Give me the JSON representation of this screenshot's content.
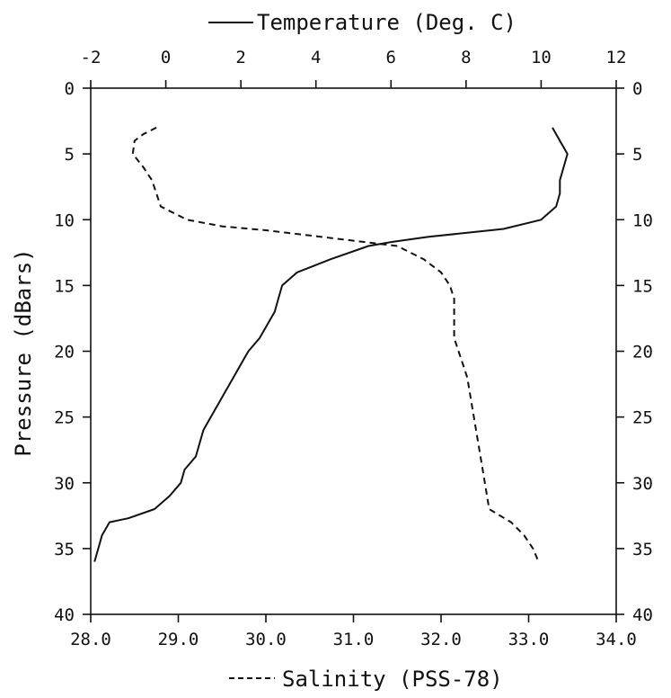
{
  "chart_data": {
    "type": "line",
    "legend": {
      "temperature": "Temperature (Deg. C)",
      "salinity": "Salinity (PSS-78)"
    },
    "ylabel": "Pressure (dBars)",
    "y_axis": {
      "inverted": true,
      "ylim": [
        0,
        40
      ],
      "ticks": [
        "0",
        "5",
        "10",
        "15",
        "20",
        "25",
        "30",
        "35",
        "40"
      ]
    },
    "top_axis": {
      "quantity": "Temperature",
      "xlim": [
        -2,
        12
      ],
      "ticks": [
        "-2",
        "0",
        "2",
        "4",
        "6",
        "8",
        "10",
        "12"
      ]
    },
    "bottom_axis": {
      "quantity": "Salinity",
      "xlim": [
        28.0,
        34.0
      ],
      "ticks": [
        "28.0",
        "29.0",
        "30.0",
        "31.0",
        "32.0",
        "33.0",
        "34.0"
      ]
    },
    "grid": false,
    "series": [
      {
        "name": "Temperature (Deg. C)",
        "axis": "top",
        "line_style": "solid",
        "points": [
          [
            10.3,
            3
          ],
          [
            10.5,
            4
          ],
          [
            10.7,
            5
          ],
          [
            10.6,
            6
          ],
          [
            10.5,
            7
          ],
          [
            10.5,
            8
          ],
          [
            10.4,
            9
          ],
          [
            10.0,
            10
          ],
          [
            9.0,
            10.7
          ],
          [
            8.0,
            11.0
          ],
          [
            7.0,
            11.3
          ],
          [
            6.0,
            11.7
          ],
          [
            5.4,
            12.0
          ],
          [
            4.4,
            13.0
          ],
          [
            3.5,
            14.0
          ],
          [
            3.1,
            15.0
          ],
          [
            3.0,
            16.0
          ],
          [
            2.9,
            17.0
          ],
          [
            2.7,
            18.0
          ],
          [
            2.5,
            19.0
          ],
          [
            2.2,
            20.0
          ],
          [
            2.0,
            21.0
          ],
          [
            1.8,
            22.0
          ],
          [
            1.6,
            23.0
          ],
          [
            1.4,
            24.0
          ],
          [
            1.2,
            25.0
          ],
          [
            1.0,
            26.0
          ],
          [
            0.9,
            27.0
          ],
          [
            0.8,
            28.0
          ],
          [
            0.5,
            29.0
          ],
          [
            0.4,
            30.0
          ],
          [
            0.1,
            31.0
          ],
          [
            -0.3,
            32.0
          ],
          [
            -1.0,
            32.7
          ],
          [
            -1.5,
            33.0
          ],
          [
            -1.7,
            34.0
          ],
          [
            -1.8,
            35.0
          ],
          [
            -1.9,
            36.0
          ]
        ]
      },
      {
        "name": "Salinity (PSS-78)",
        "axis": "bottom",
        "line_style": "dashed",
        "points": [
          [
            28.75,
            3
          ],
          [
            28.6,
            3.5
          ],
          [
            28.5,
            4
          ],
          [
            28.48,
            5
          ],
          [
            28.6,
            6
          ],
          [
            28.7,
            7
          ],
          [
            28.75,
            8
          ],
          [
            28.8,
            9
          ],
          [
            29.1,
            10
          ],
          [
            29.5,
            10.5
          ],
          [
            30.0,
            10.8
          ],
          [
            30.5,
            11.2
          ],
          [
            31.0,
            11.6
          ],
          [
            31.5,
            12.0
          ],
          [
            31.8,
            13.0
          ],
          [
            32.0,
            14.0
          ],
          [
            32.1,
            15.0
          ],
          [
            32.15,
            16.0
          ],
          [
            32.15,
            17.0
          ],
          [
            32.15,
            18.0
          ],
          [
            32.15,
            19.0
          ],
          [
            32.2,
            20.0
          ],
          [
            32.25,
            21.0
          ],
          [
            32.3,
            22.0
          ],
          [
            32.35,
            24.0
          ],
          [
            32.4,
            26.0
          ],
          [
            32.45,
            28.0
          ],
          [
            32.5,
            30.0
          ],
          [
            32.55,
            32.0
          ],
          [
            32.8,
            33.0
          ],
          [
            32.95,
            34.0
          ],
          [
            33.05,
            35.0
          ],
          [
            33.1,
            35.8
          ]
        ]
      }
    ]
  }
}
